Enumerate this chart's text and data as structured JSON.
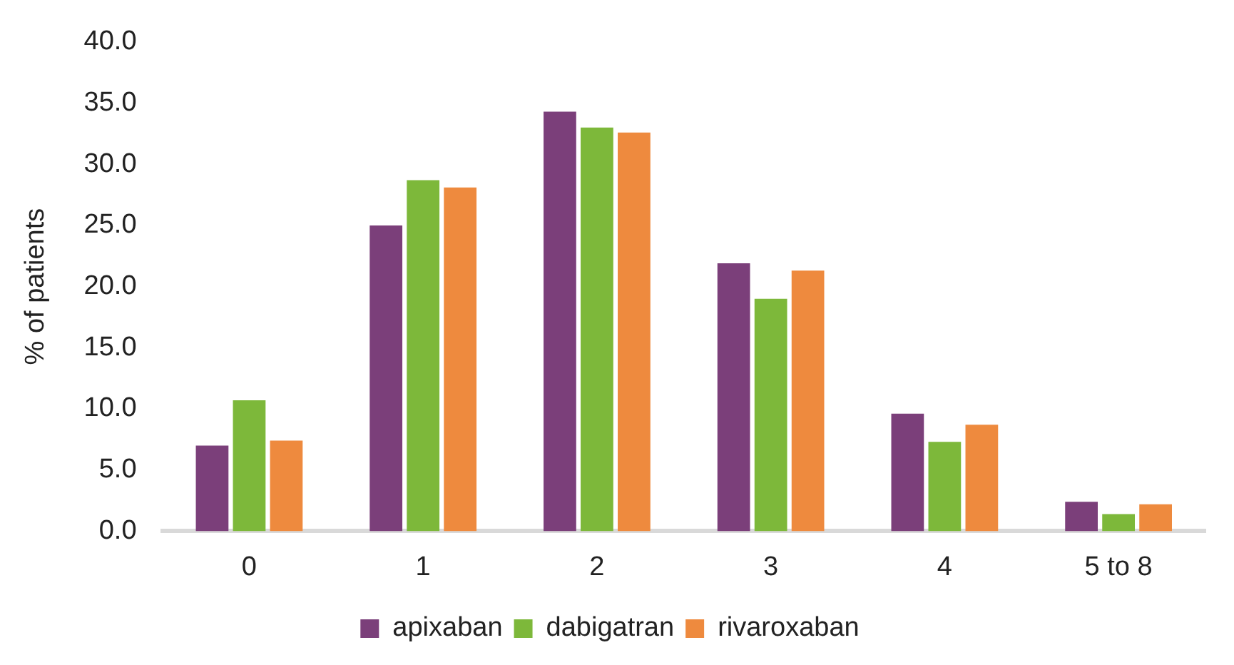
{
  "chart_data": {
    "type": "bar",
    "ylabel": "% of patients",
    "categories": [
      "0",
      "1",
      "2",
      "3",
      "4",
      "5 to 8"
    ],
    "series": [
      {
        "name": "apixaban",
        "color": "#7b3f7a",
        "values": [
          7.0,
          25.0,
          34.3,
          21.9,
          9.6,
          2.4
        ]
      },
      {
        "name": "dabigatran",
        "color": "#7db83a",
        "values": [
          10.7,
          28.7,
          33.0,
          19.0,
          7.3,
          1.4
        ]
      },
      {
        "name": "rivaroxaban",
        "color": "#ee8a3e",
        "values": [
          7.4,
          28.1,
          32.6,
          21.3,
          8.7,
          2.2
        ]
      }
    ],
    "ylim": [
      0,
      40
    ],
    "yticks": [
      {
        "value": 0,
        "label": "0.0"
      },
      {
        "value": 5,
        "label": "5.0"
      },
      {
        "value": 10,
        "label": "10.0"
      },
      {
        "value": 15,
        "label": "15.0"
      },
      {
        "value": 20,
        "label": "20.0"
      },
      {
        "value": 25,
        "label": "25.0"
      },
      {
        "value": 30,
        "label": "30.0"
      },
      {
        "value": 35,
        "label": "35.0"
      },
      {
        "value": 40,
        "label": "40.0"
      }
    ],
    "grid": false,
    "legend": "bottom"
  }
}
